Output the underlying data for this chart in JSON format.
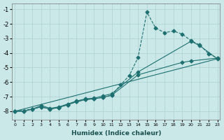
{
  "xlabel": "Humidex (Indice chaleur)",
  "background_color": "#cbe8e8",
  "grid_color": "#aed0d0",
  "line_color": "#1e7070",
  "xlim": [
    -0.3,
    23.3
  ],
  "ylim": [
    -8.6,
    -0.6
  ],
  "yticks": [
    -8,
    -7,
    -6,
    -5,
    -4,
    -3,
    -2,
    -1
  ],
  "xticks": [
    0,
    1,
    2,
    3,
    4,
    5,
    6,
    7,
    8,
    9,
    10,
    11,
    12,
    13,
    14,
    15,
    16,
    17,
    18,
    19,
    20,
    21,
    22,
    23
  ],
  "series": [
    {
      "x": [
        0,
        1,
        2,
        3,
        4,
        5,
        6,
        7,
        8,
        9,
        10,
        11,
        14,
        19,
        20,
        23
      ],
      "y": [
        -8.0,
        -8.0,
        -7.85,
        -7.7,
        -7.85,
        -7.75,
        -7.55,
        -7.35,
        -7.2,
        -7.15,
        -7.05,
        -6.9,
        -5.5,
        -4.65,
        -4.55,
        -4.35
      ],
      "marker": true,
      "dashed": false
    },
    {
      "x": [
        0,
        1,
        2,
        3,
        4,
        5,
        6,
        7,
        8,
        9,
        10,
        11,
        14,
        20,
        21,
        23
      ],
      "y": [
        -8.0,
        -8.0,
        -7.85,
        -7.6,
        -7.8,
        -7.7,
        -7.5,
        -7.3,
        -7.15,
        -7.1,
        -6.95,
        -6.8,
        -5.3,
        -3.2,
        -3.5,
        -4.4
      ],
      "marker": true,
      "dashed": false
    },
    {
      "x": [
        0,
        2,
        3,
        4,
        5,
        6,
        7,
        8,
        9,
        10,
        11,
        12,
        13,
        14,
        15,
        16,
        17,
        18,
        19,
        20,
        21,
        22,
        23
      ],
      "y": [
        -8.0,
        -7.85,
        -7.7,
        -7.85,
        -7.75,
        -7.55,
        -7.35,
        -7.2,
        -7.15,
        -7.05,
        -6.9,
        -6.2,
        -5.55,
        -4.3,
        -1.2,
        -2.3,
        -2.6,
        -2.5,
        -2.7,
        -3.15,
        -3.45,
        -4.05,
        -4.35
      ],
      "marker": true,
      "dashed": true
    },
    {
      "x": [
        0,
        23
      ],
      "y": [
        -8.0,
        -4.4
      ],
      "marker": false,
      "dashed": false
    }
  ]
}
